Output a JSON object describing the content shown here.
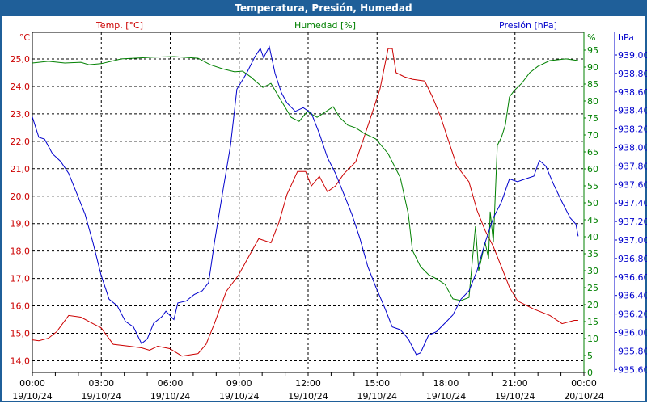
{
  "title": "Temperatura, Presión, Humedad",
  "colors": {
    "temp": "#cc0000",
    "hum": "#008000",
    "pres": "#0000cc",
    "titlebar": "#1f5f99"
  },
  "chart_data": {
    "type": "line",
    "title": "Temperatura, Presión, Humedad",
    "xlabel": "",
    "x_unit": "hours since 00:00 19/10/24",
    "xlim": [
      0,
      24
    ],
    "x_ticks": [
      {
        "time": "00:00",
        "date": "19/10/24"
      },
      {
        "time": "03:00",
        "date": "19/10/24"
      },
      {
        "time": "06:00",
        "date": "19/10/24"
      },
      {
        "time": "09:00",
        "date": "19/10/24"
      },
      {
        "time": "12:00",
        "date": "19/10/24"
      },
      {
        "time": "15:00",
        "date": "19/10/24"
      },
      {
        "time": "18:00",
        "date": "19/10/24"
      },
      {
        "time": "21:00",
        "date": "19/10/24"
      },
      {
        "time": "00:00",
        "date": "20/10/24"
      }
    ],
    "grid": true,
    "axes": {
      "temp": {
        "unit": "°C",
        "ylim": [
          13.7,
          25.9
        ],
        "ticks": [
          "14,0",
          "15,0",
          "16,0",
          "17,0",
          "18,0",
          "19,0",
          "20,0",
          "21,0",
          "22,0",
          "23,0",
          "24,0",
          "25,0"
        ],
        "tick_values": [
          14,
          15,
          16,
          17,
          18,
          19,
          20,
          21,
          22,
          23,
          24,
          25
        ]
      },
      "hum": {
        "unit": "%",
        "ylim": [
          0,
          95
        ],
        "ticks": [
          "0",
          "5",
          "10",
          "15",
          "20",
          "25",
          "30",
          "35",
          "40",
          "45",
          "50",
          "55",
          "60",
          "65",
          "70",
          "75",
          "80",
          "85",
          "90",
          "95"
        ],
        "tick_values": [
          0,
          5,
          10,
          15,
          20,
          25,
          30,
          35,
          40,
          45,
          50,
          55,
          60,
          65,
          70,
          75,
          80,
          85,
          90,
          95
        ]
      },
      "pres": {
        "unit": "hPa",
        "ylim": [
          935.6,
          939.0
        ],
        "ticks": [
          "935,60",
          "935,80",
          "936,00",
          "936,20",
          "936,40",
          "936,60",
          "936,80",
          "937,00",
          "937,20",
          "937,40",
          "937,60",
          "937,80",
          "938,00",
          "938,20",
          "938,40",
          "938,60",
          "938,80",
          "939,00"
        ],
        "tick_values": [
          935.6,
          935.8,
          936.0,
          936.2,
          936.4,
          936.6,
          936.8,
          937.0,
          937.2,
          937.4,
          937.6,
          937.8,
          938.0,
          938.2,
          938.4,
          938.6,
          938.8,
          939.0
        ]
      }
    },
    "series": [
      {
        "name": "Temp. [°C]",
        "axis": "temp",
        "points": [
          [
            0,
            14.76
          ],
          [
            0.28,
            14.73
          ],
          [
            0.7,
            14.82
          ],
          [
            1.06,
            15.06
          ],
          [
            1.58,
            15.65
          ],
          [
            2.11,
            15.59
          ],
          [
            2.64,
            15.35
          ],
          [
            2.99,
            15.2
          ],
          [
            3.52,
            14.6
          ],
          [
            4.22,
            14.53
          ],
          [
            4.75,
            14.47
          ],
          [
            5.1,
            14.38
          ],
          [
            5.45,
            14.53
          ],
          [
            5.98,
            14.44
          ],
          [
            6.51,
            14.17
          ],
          [
            7.21,
            14.26
          ],
          [
            7.56,
            14.6
          ],
          [
            7.92,
            15.35
          ],
          [
            8.44,
            16.53
          ],
          [
            8.97,
            17.12
          ],
          [
            9.32,
            17.65
          ],
          [
            9.85,
            18.45
          ],
          [
            10.38,
            18.3
          ],
          [
            10.73,
            19.04
          ],
          [
            11.08,
            20.07
          ],
          [
            11.54,
            20.9
          ],
          [
            11.89,
            20.9
          ],
          [
            12.14,
            20.37
          ],
          [
            12.49,
            20.72
          ],
          [
            12.84,
            20.16
          ],
          [
            13.19,
            20.37
          ],
          [
            13.55,
            20.81
          ],
          [
            14.07,
            21.25
          ],
          [
            14.43,
            22.14
          ],
          [
            14.78,
            23.02
          ],
          [
            15.13,
            23.91
          ],
          [
            15.48,
            25.38
          ],
          [
            15.66,
            25.38
          ],
          [
            15.83,
            24.5
          ],
          [
            16.19,
            24.35
          ],
          [
            16.54,
            24.26
          ],
          [
            17.07,
            24.2
          ],
          [
            17.42,
            23.6
          ],
          [
            17.77,
            22.88
          ],
          [
            18.12,
            21.99
          ],
          [
            18.47,
            21.1
          ],
          [
            19.0,
            20.52
          ],
          [
            19.35,
            19.48
          ],
          [
            19.7,
            18.75
          ],
          [
            20.06,
            18.16
          ],
          [
            20.41,
            17.42
          ],
          [
            20.76,
            16.68
          ],
          [
            21.11,
            16.18
          ],
          [
            21.82,
            15.88
          ],
          [
            22.52,
            15.65
          ],
          [
            23.05,
            15.35
          ],
          [
            23.58,
            15.47
          ],
          [
            23.75,
            15.47
          ]
        ]
      },
      {
        "name": "Humedad [%]",
        "axis": "hum",
        "points": [
          [
            0,
            91.2
          ],
          [
            0.7,
            91.7
          ],
          [
            1.41,
            91.2
          ],
          [
            2.11,
            91.4
          ],
          [
            2.46,
            90.7
          ],
          [
            2.99,
            91.0
          ],
          [
            3.87,
            92.4
          ],
          [
            4.4,
            92.6
          ],
          [
            5.28,
            92.9
          ],
          [
            6.16,
            93.1
          ],
          [
            7.21,
            92.6
          ],
          [
            7.74,
            90.7
          ],
          [
            8.27,
            89.5
          ],
          [
            8.8,
            88.6
          ],
          [
            9.15,
            88.8
          ],
          [
            9.5,
            87.1
          ],
          [
            10.03,
            84.0
          ],
          [
            10.38,
            85.2
          ],
          [
            10.73,
            81.2
          ],
          [
            11.26,
            75.2
          ],
          [
            11.61,
            74.0
          ],
          [
            11.96,
            76.9
          ],
          [
            12.39,
            75.2
          ],
          [
            12.67,
            76.4
          ],
          [
            13.09,
            78.3
          ],
          [
            13.37,
            75.2
          ],
          [
            13.72,
            72.9
          ],
          [
            14.07,
            72.1
          ],
          [
            14.43,
            70.5
          ],
          [
            14.95,
            68.8
          ],
          [
            15.48,
            64.5
          ],
          [
            16.01,
            57.4
          ],
          [
            16.36,
            46.7
          ],
          [
            16.54,
            36.0
          ],
          [
            16.89,
            31.2
          ],
          [
            17.24,
            28.8
          ],
          [
            17.59,
            27.6
          ],
          [
            17.95,
            26.0
          ],
          [
            18.3,
            21.7
          ],
          [
            18.65,
            21.2
          ],
          [
            19.0,
            22.1
          ],
          [
            19.28,
            43.1
          ],
          [
            19.42,
            30.0
          ],
          [
            19.7,
            38.3
          ],
          [
            19.85,
            33.6
          ],
          [
            19.92,
            47.4
          ],
          [
            20.06,
            38.3
          ],
          [
            20.23,
            66.9
          ],
          [
            20.41,
            69.3
          ],
          [
            20.58,
            72.9
          ],
          [
            20.76,
            81.2
          ],
          [
            20.97,
            83.1
          ],
          [
            21.29,
            85.2
          ],
          [
            21.64,
            88.3
          ],
          [
            21.99,
            90.2
          ],
          [
            22.52,
            91.9
          ],
          [
            23.22,
            92.4
          ],
          [
            23.75,
            91.9
          ]
        ]
      },
      {
        "name": "Presión [hPa]",
        "axis": "pres",
        "points": [
          [
            0,
            938.33
          ],
          [
            0.28,
            938.11
          ],
          [
            0.53,
            938.09
          ],
          [
            0.88,
            937.93
          ],
          [
            1.23,
            937.85
          ],
          [
            1.58,
            937.72
          ],
          [
            1.94,
            937.5
          ],
          [
            2.29,
            937.28
          ],
          [
            2.64,
            936.97
          ],
          [
            2.99,
            936.62
          ],
          [
            3.34,
            936.36
          ],
          [
            3.69,
            936.29
          ],
          [
            4.05,
            936.12
          ],
          [
            4.4,
            936.06
          ],
          [
            4.75,
            935.88
          ],
          [
            5.0,
            935.93
          ],
          [
            5.28,
            936.1
          ],
          [
            5.63,
            936.17
          ],
          [
            5.81,
            936.23
          ],
          [
            6.16,
            936.14
          ],
          [
            6.33,
            936.32
          ],
          [
            6.69,
            936.34
          ],
          [
            7.04,
            936.41
          ],
          [
            7.39,
            936.45
          ],
          [
            7.67,
            936.54
          ],
          [
            7.92,
            936.97
          ],
          [
            8.27,
            937.5
          ],
          [
            8.62,
            938.02
          ],
          [
            8.9,
            938.63
          ],
          [
            9.32,
            938.8
          ],
          [
            9.68,
            938.98
          ],
          [
            9.92,
            939.07
          ],
          [
            10.06,
            938.97
          ],
          [
            10.31,
            939.09
          ],
          [
            10.56,
            938.8
          ],
          [
            10.84,
            938.59
          ],
          [
            11.08,
            938.48
          ],
          [
            11.44,
            938.39
          ],
          [
            11.79,
            938.43
          ],
          [
            12.14,
            938.37
          ],
          [
            12.49,
            938.15
          ],
          [
            12.84,
            937.89
          ],
          [
            13.19,
            937.72
          ],
          [
            13.55,
            937.5
          ],
          [
            13.9,
            937.28
          ],
          [
            14.25,
            937.02
          ],
          [
            14.6,
            936.71
          ],
          [
            14.95,
            936.49
          ],
          [
            15.31,
            936.28
          ],
          [
            15.66,
            936.06
          ],
          [
            16.01,
            936.03
          ],
          [
            16.36,
            935.93
          ],
          [
            16.71,
            935.76
          ],
          [
            16.89,
            935.78
          ],
          [
            17.24,
            935.97
          ],
          [
            17.59,
            936.01
          ],
          [
            17.95,
            936.1
          ],
          [
            18.3,
            936.19
          ],
          [
            18.65,
            936.36
          ],
          [
            19.0,
            936.45
          ],
          [
            19.35,
            936.67
          ],
          [
            19.7,
            936.97
          ],
          [
            20.06,
            937.24
          ],
          [
            20.41,
            937.41
          ],
          [
            20.76,
            937.66
          ],
          [
            21.11,
            937.63
          ],
          [
            21.46,
            937.66
          ],
          [
            21.82,
            937.69
          ],
          [
            22.06,
            937.86
          ],
          [
            22.34,
            937.8
          ],
          [
            22.7,
            937.59
          ],
          [
            23.05,
            937.41
          ],
          [
            23.4,
            937.24
          ],
          [
            23.65,
            937.17
          ],
          [
            23.75,
            937.04
          ]
        ]
      }
    ]
  }
}
